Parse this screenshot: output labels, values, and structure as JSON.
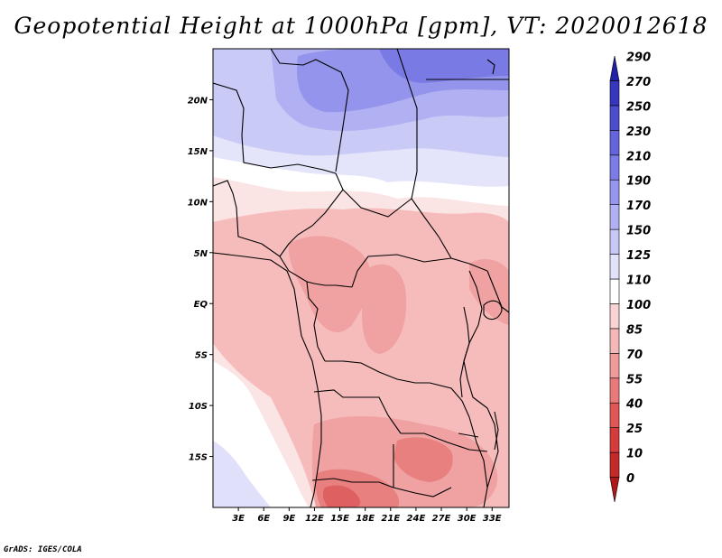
{
  "title": "Geopotential Height at 1000hPa [gpm], VT: 2020012618",
  "footer": "GrADS: IGES/COLA",
  "map": {
    "lon_range": [
      0,
      35
    ],
    "lat_range": [
      -20,
      25
    ],
    "lat_ticks": [
      {
        "value": 20,
        "label": "20N"
      },
      {
        "value": 15,
        "label": "15N"
      },
      {
        "value": 10,
        "label": "10N"
      },
      {
        "value": 5,
        "label": "5N"
      },
      {
        "value": 0,
        "label": "EQ"
      },
      {
        "value": -5,
        "label": "5S"
      },
      {
        "value": -10,
        "label": "10S"
      },
      {
        "value": -15,
        "label": "15S"
      }
    ],
    "lon_ticks": [
      {
        "value": 3,
        "label": "3E"
      },
      {
        "value": 6,
        "label": "6E"
      },
      {
        "value": 9,
        "label": "9E"
      },
      {
        "value": 12,
        "label": "12E"
      },
      {
        "value": 15,
        "label": "15E"
      },
      {
        "value": 18,
        "label": "18E"
      },
      {
        "value": 21,
        "label": "21E"
      },
      {
        "value": 24,
        "label": "24E"
      },
      {
        "value": 27,
        "label": "27E"
      },
      {
        "value": 30,
        "label": "30E"
      },
      {
        "value": 33,
        "label": "33E"
      }
    ]
  },
  "colorbar": {
    "labels": [
      "0",
      "10",
      "25",
      "40",
      "55",
      "70",
      "85",
      "100",
      "110",
      "125",
      "150",
      "170",
      "190",
      "210",
      "230",
      "250",
      "270",
      "290"
    ],
    "colors": [
      "#b01818",
      "#c42a2a",
      "#d63b3b",
      "#e25656",
      "#ea7a7a",
      "#f09a9a",
      "#f5b8b8",
      "#fad4d4",
      "#ffffff",
      "#e2e2fa",
      "#c8c8f6",
      "#b0b0f2",
      "#9696ee",
      "#7c7ce6",
      "#6464dc",
      "#4c4cce",
      "#3636be",
      "#2020a8"
    ]
  }
}
